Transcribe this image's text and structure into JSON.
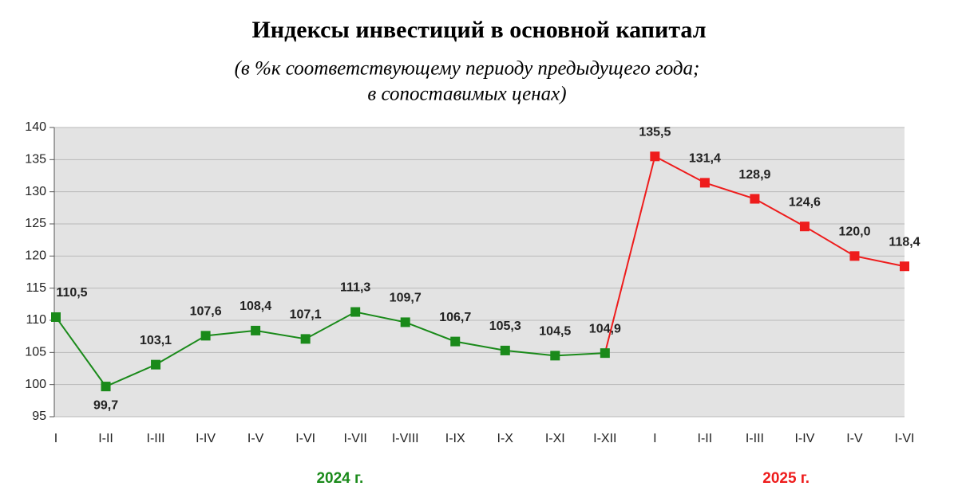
{
  "chart_data": {
    "type": "line",
    "title": "Индексы инвестиций в основной капитал",
    "subtitle": "(в %к соответствующему периоду предыдущего года;",
    "subtitle2": "в сопоставимых ценах)",
    "categories": [
      "I",
      "I-II",
      "I-III",
      "I-IV",
      "I-V",
      "I-VI",
      "I-VII",
      "I-VIII",
      "I-IX",
      "I-X",
      "I-XI",
      "I-XII",
      "I",
      "I-II",
      "I-III",
      "I-IV",
      "I-V",
      "I-VI"
    ],
    "series": [
      {
        "name": "2024 г.",
        "color": "#1a8a1a",
        "values": [
          110.5,
          99.7,
          103.1,
          107.6,
          108.4,
          107.1,
          111.3,
          109.7,
          106.7,
          105.3,
          104.5,
          104.9,
          null,
          null,
          null,
          null,
          null,
          null
        ],
        "value_labels": [
          "110,5",
          "99,7",
          "103,1",
          "107,6",
          "108,4",
          "107,1",
          "111,3",
          "109,7",
          "106,7",
          "105,3",
          "104,5",
          "104,9",
          null,
          null,
          null,
          null,
          null,
          null
        ]
      },
      {
        "name": "2025 г.",
        "color": "#ee1c1c",
        "values": [
          null,
          null,
          null,
          null,
          null,
          null,
          null,
          null,
          null,
          null,
          null,
          null,
          135.5,
          131.4,
          128.9,
          124.6,
          120.0,
          118.4
        ],
        "value_labels": [
          null,
          null,
          null,
          null,
          null,
          null,
          null,
          null,
          null,
          null,
          null,
          null,
          "135,5",
          "131,4",
          "128,9",
          "124,6",
          "120,0",
          "118,4"
        ]
      }
    ],
    "ylim": [
      95,
      140
    ],
    "yticks": [
      95,
      100,
      105,
      110,
      115,
      120,
      125,
      130,
      135,
      140
    ],
    "grid": true
  }
}
